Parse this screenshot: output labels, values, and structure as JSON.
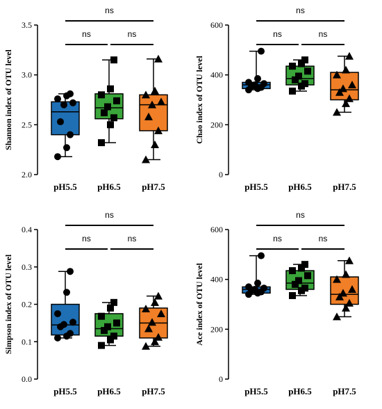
{
  "colors": {
    "ph55": "#1f6fb4",
    "ph65": "#3aa53a",
    "ph75": "#f07f27",
    "ink": "#000000"
  },
  "chart_data": [
    {
      "id": "shannon",
      "type": "box",
      "ylabel": "Shannon index of OTU level",
      "categories": [
        "pH5.5",
        "pH6.5",
        "pH7.5"
      ],
      "ylim": [
        2.0,
        3.5
      ],
      "yticks": [
        "2.0",
        "2.5",
        "3.0",
        "3.5"
      ],
      "ytick_values": [
        2.0,
        2.5,
        3.0,
        3.5
      ],
      "markers": [
        "circle",
        "square",
        "triangle"
      ],
      "series": [
        {
          "category": "pH5.5",
          "min": 2.18,
          "q1": 2.4,
          "median": 2.63,
          "q3": 2.73,
          "max": 2.81,
          "points": [
            2.18,
            2.27,
            2.4,
            2.53,
            2.7,
            2.72,
            2.76,
            2.79,
            2.81
          ]
        },
        {
          "category": "pH6.5",
          "min": 2.32,
          "q1": 2.56,
          "median": 2.67,
          "q3": 2.81,
          "max": 3.15,
          "points": [
            2.32,
            2.5,
            2.57,
            2.62,
            2.68,
            2.74,
            2.8,
            2.86,
            3.15
          ]
        },
        {
          "category": "pH7.5",
          "min": 2.15,
          "q1": 2.44,
          "median": 2.7,
          "q3": 2.8,
          "max": 3.16,
          "points": [
            2.15,
            2.3,
            2.44,
            2.58,
            2.7,
            2.73,
            2.8,
            2.84,
            3.16
          ]
        }
      ],
      "comparisons": [
        {
          "from": 0,
          "to": 1,
          "label": "ns",
          "level": 1
        },
        {
          "from": 1,
          "to": 2,
          "label": "ns",
          "level": 1
        },
        {
          "from": 0,
          "to": 2,
          "label": "ns",
          "level": 2
        }
      ]
    },
    {
      "id": "chao",
      "type": "box",
      "ylabel": "Chao index of OTU level",
      "categories": [
        "pH5.5",
        "pH6.5",
        "pH7.5"
      ],
      "ylim": [
        0,
        600
      ],
      "yticks": [
        "0",
        "200",
        "400",
        "600"
      ],
      "ytick_values": [
        0,
        200,
        400,
        600
      ],
      "markers": [
        "circle",
        "square",
        "triangle"
      ],
      "series": [
        {
          "category": "pH5.5",
          "min": 340,
          "q1": 345,
          "median": 360,
          "q3": 370,
          "max": 495,
          "points": [
            340,
            345,
            350,
            355,
            360,
            365,
            370,
            385,
            495
          ]
        },
        {
          "category": "pH6.5",
          "min": 335,
          "q1": 360,
          "median": 385,
          "q3": 435,
          "max": 460,
          "points": [
            335,
            355,
            365,
            380,
            395,
            415,
            435,
            445,
            460
          ]
        },
        {
          "category": "pH7.5",
          "min": 250,
          "q1": 300,
          "median": 340,
          "q3": 410,
          "max": 475,
          "points": [
            250,
            285,
            305,
            330,
            345,
            360,
            400,
            420,
            475
          ]
        }
      ],
      "comparisons": [
        {
          "from": 0,
          "to": 1,
          "label": "ns",
          "level": 1
        },
        {
          "from": 1,
          "to": 2,
          "label": "ns",
          "level": 1
        },
        {
          "from": 0,
          "to": 2,
          "label": "ns",
          "level": 2
        }
      ]
    },
    {
      "id": "simpson",
      "type": "box",
      "ylabel": "Simpson index of OTU level",
      "categories": [
        "pH5.5",
        "pH6.5",
        "pH7.5"
      ],
      "ylim": [
        0.0,
        0.4
      ],
      "yticks": [
        "0.0",
        "0.1",
        "0.2",
        "0.3",
        "0.4"
      ],
      "ytick_values": [
        0.0,
        0.1,
        0.2,
        0.3,
        0.4
      ],
      "markers": [
        "circle",
        "square",
        "triangle"
      ],
      "series": [
        {
          "category": "pH5.5",
          "min": 0.11,
          "q1": 0.118,
          "median": 0.145,
          "q3": 0.2,
          "max": 0.288,
          "points": [
            0.11,
            0.115,
            0.122,
            0.14,
            0.146,
            0.152,
            0.175,
            0.232,
            0.288
          ]
        },
        {
          "category": "pH6.5",
          "min": 0.09,
          "q1": 0.115,
          "median": 0.135,
          "q3": 0.175,
          "max": 0.205,
          "points": [
            0.09,
            0.105,
            0.115,
            0.13,
            0.14,
            0.15,
            0.168,
            0.19,
            0.205
          ]
        },
        {
          "category": "pH7.5",
          "min": 0.088,
          "q1": 0.11,
          "median": 0.15,
          "q3": 0.19,
          "max": 0.222,
          "points": [
            0.088,
            0.1,
            0.112,
            0.135,
            0.152,
            0.175,
            0.188,
            0.205,
            0.222
          ]
        }
      ],
      "comparisons": [
        {
          "from": 0,
          "to": 1,
          "label": "ns",
          "level": 1
        },
        {
          "from": 1,
          "to": 2,
          "label": "ns",
          "level": 1
        },
        {
          "from": 0,
          "to": 2,
          "label": "ns",
          "level": 2
        }
      ]
    },
    {
      "id": "ace",
      "type": "box",
      "ylabel": "Ace index of OTU level",
      "categories": [
        "pH5.5",
        "pH6.5",
        "pH7.5"
      ],
      "ylim": [
        0,
        600
      ],
      "yticks": [
        "0",
        "200",
        "400",
        "600"
      ],
      "ytick_values": [
        0,
        200,
        400,
        600
      ],
      "markers": [
        "circle",
        "square",
        "triangle"
      ],
      "series": [
        {
          "category": "pH5.5",
          "min": 340,
          "q1": 345,
          "median": 360,
          "q3": 370,
          "max": 495,
          "points": [
            340,
            345,
            350,
            355,
            360,
            365,
            370,
            385,
            495
          ]
        },
        {
          "category": "pH6.5",
          "min": 335,
          "q1": 360,
          "median": 385,
          "q3": 435,
          "max": 460,
          "points": [
            335,
            355,
            365,
            380,
            395,
            415,
            435,
            445,
            460
          ]
        },
        {
          "category": "pH7.5",
          "min": 250,
          "q1": 300,
          "median": 340,
          "q3": 410,
          "max": 475,
          "points": [
            250,
            285,
            305,
            330,
            345,
            360,
            400,
            420,
            475
          ]
        }
      ],
      "comparisons": [
        {
          "from": 0,
          "to": 1,
          "label": "ns",
          "level": 1
        },
        {
          "from": 1,
          "to": 2,
          "label": "ns",
          "level": 1
        },
        {
          "from": 0,
          "to": 2,
          "label": "ns",
          "level": 2
        }
      ]
    }
  ]
}
